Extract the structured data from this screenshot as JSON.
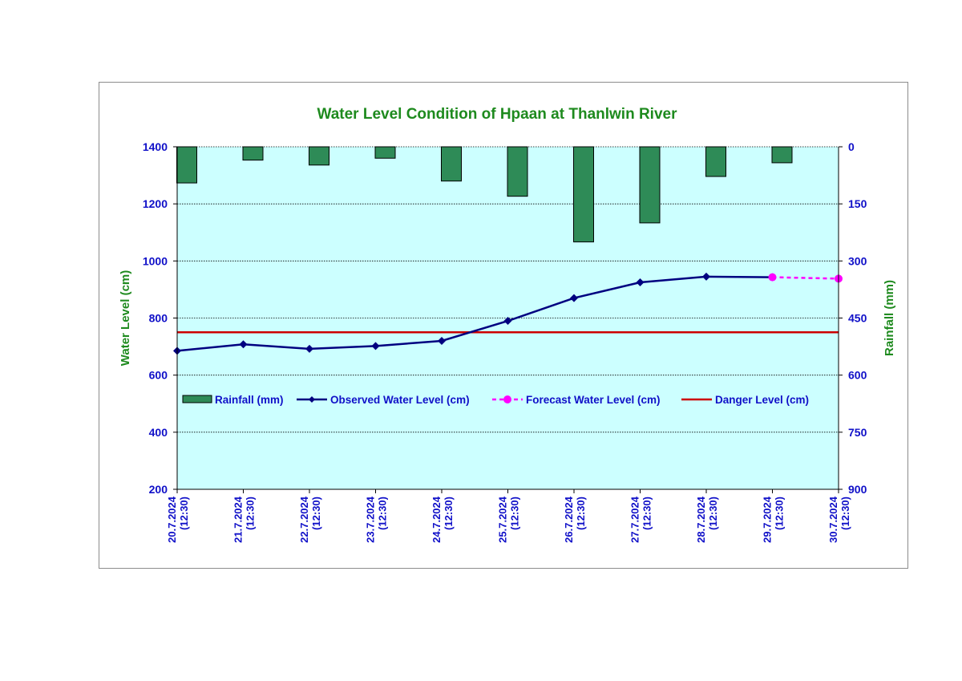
{
  "colors": {
    "plot_bg": "#ccffff",
    "rain_fill": "#2e8b57",
    "observed": "#000080",
    "forecast": "#ff00ff",
    "danger": "#cc0000",
    "title": "#1e8a1e",
    "tick_text": "#1010c8"
  },
  "chart_data": {
    "type": "line",
    "title": "Water Level Condition of Hpaan at Thanlwin River",
    "ylabel": "Water Level (cm)",
    "y2label": "Rainfall (mm)",
    "ylim": [
      200,
      1400
    ],
    "yticks": [
      200,
      400,
      600,
      800,
      1000,
      1200,
      1400
    ],
    "y2lim": [
      0,
      900
    ],
    "y2_inverted": true,
    "y2ticks": [
      0,
      150,
      300,
      450,
      600,
      750,
      900
    ],
    "grid": true,
    "legend_position": "middle, inside plot",
    "categories": [
      "20.7.2024 (12:30)",
      "21.7.2024 (12:30)",
      "22.7.2024 (12:30)",
      "23.7.2024 (12:30)",
      "24.7.2024 (12:30)",
      "25.7.2024 (12:30)",
      "26.7.2024 (12:30)",
      "27.7.2024 (12:30)",
      "28.7.2024 (12:30)",
      "29.7.2024 (12:30)",
      "30.7.2024 (12:30)"
    ],
    "series": [
      {
        "name": "Rainfall (mm)",
        "type": "bar",
        "axis": "y2",
        "values": [
          95,
          35,
          48,
          30,
          90,
          130,
          250,
          200,
          78,
          42,
          null
        ]
      },
      {
        "name": "Observed Water Level (cm)",
        "type": "line",
        "marker": "diamond",
        "values": [
          685,
          708,
          692,
          702,
          720,
          790,
          870,
          925,
          945,
          943,
          null
        ]
      },
      {
        "name": "Forecast Water Level (cm)",
        "type": "line",
        "dashed": true,
        "marker": "circle",
        "values": [
          null,
          null,
          null,
          null,
          null,
          null,
          null,
          null,
          null,
          943,
          938
        ]
      },
      {
        "name": "Danger Level (cm)",
        "type": "line",
        "values": [
          750,
          750,
          750,
          750,
          750,
          750,
          750,
          750,
          750,
          750,
          750
        ]
      }
    ]
  }
}
